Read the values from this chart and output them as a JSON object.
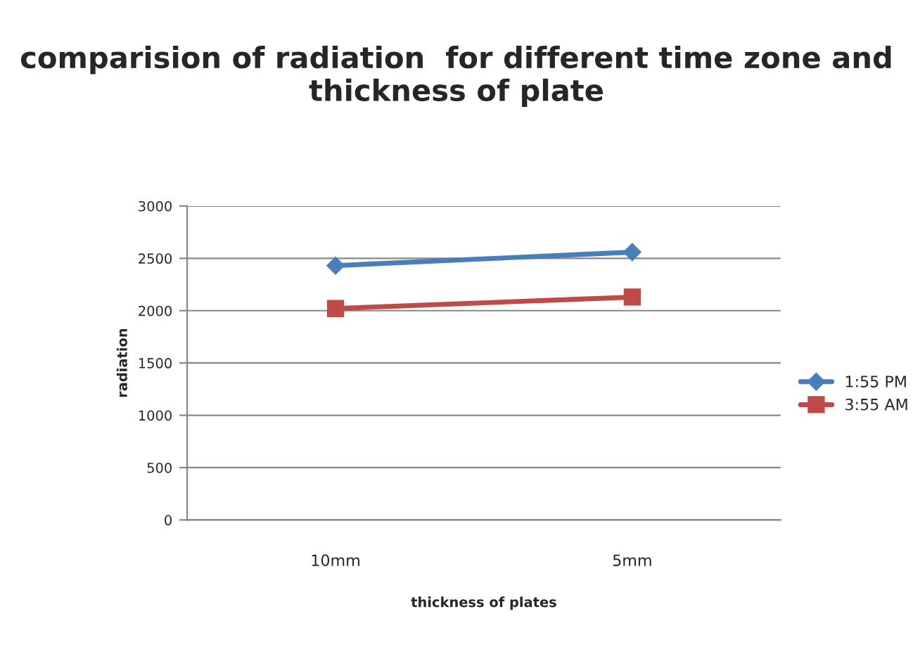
{
  "chart_data": {
    "type": "line",
    "title": "comparision of radiation  for different time zone and thickness of plate",
    "xlabel": "thickness of plates",
    "ylabel": "radiation",
    "categories": [
      "10mm",
      "5mm"
    ],
    "series": [
      {
        "name": "1:55 PM",
        "color": "#4a7ebb",
        "values": [
          2430,
          2560
        ],
        "marker": "diamond"
      },
      {
        "name": "3:55 AM",
        "color": "#be4b48",
        "values": [
          2020,
          2130
        ],
        "marker": "square"
      }
    ],
    "ylim": [
      0,
      3000
    ],
    "yticks": [
      0,
      500,
      1000,
      1500,
      2000,
      2500,
      3000
    ],
    "grid": "y",
    "legend": "right"
  }
}
